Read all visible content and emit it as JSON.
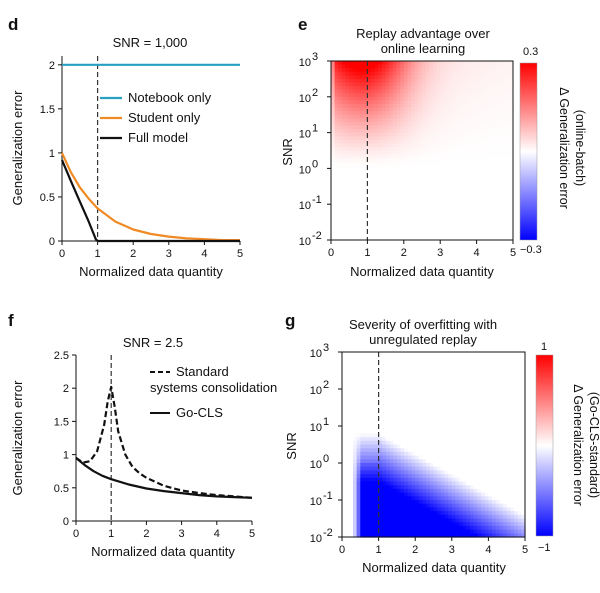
{
  "chart_data": [
    {
      "panel": "d",
      "type": "line",
      "title": "SNR = 1,000",
      "xlabel": "Normalized data quantity",
      "ylabel": "Generalization error",
      "xlim": [
        0,
        5
      ],
      "ylim": [
        0,
        2.1
      ],
      "xticks": [
        "0",
        "1",
        "2",
        "3",
        "4",
        "5"
      ],
      "yticks": [
        "0",
        "0.5",
        "1",
        "1.5",
        "2"
      ],
      "vline_x": 1,
      "legend_position": "center-right",
      "series": [
        {
          "name": "Notebook only",
          "color": "#2a9fc0",
          "x": [
            0,
            0.5,
            1,
            2,
            3,
            4,
            5
          ],
          "y": [
            2,
            2,
            2,
            2,
            2,
            2,
            2
          ]
        },
        {
          "name": "Student only",
          "color": "#f08a24",
          "x": [
            0,
            0.25,
            0.5,
            0.75,
            1,
            1.5,
            2,
            2.5,
            3,
            3.5,
            4,
            4.5,
            5
          ],
          "y": [
            1.0,
            0.78,
            0.61,
            0.48,
            0.37,
            0.22,
            0.13,
            0.08,
            0.05,
            0.03,
            0.02,
            0.01,
            0.01
          ]
        },
        {
          "name": "Full model",
          "color": "#111111",
          "x": [
            0,
            0.25,
            0.5,
            0.75,
            0.95,
            1,
            1.5,
            2,
            3,
            4,
            5
          ],
          "y": [
            0.92,
            0.68,
            0.45,
            0.22,
            0.02,
            0.0,
            0.0,
            0.0,
            0.0,
            0.0,
            0.0
          ]
        }
      ]
    },
    {
      "panel": "e",
      "type": "heatmap",
      "title": "Replay advantage over online learning",
      "xlabel": "Normalized data quantity",
      "ylabel": "SNR",
      "xlim": [
        0,
        5
      ],
      "ylim_log10": [
        -2,
        3
      ],
      "xticks": [
        "0",
        "1",
        "2",
        "3",
        "4",
        "5"
      ],
      "yticks": [
        "10",
        "10",
        "10",
        "10",
        "10",
        "10"
      ],
      "ytick_exponents": [
        "-2",
        "-1",
        "0",
        "1",
        "2",
        "3"
      ],
      "vline_x": 1,
      "colorbar": {
        "label": "Δ Generalization error (online-batch)",
        "min": -0.3,
        "max": 0.3,
        "ticks": [
          "−0.3",
          "0.3"
        ],
        "low_color": "#0000ff",
        "mid_color": "#ffffff",
        "high_color": "#ff0000"
      }
    },
    {
      "panel": "f",
      "type": "line",
      "title": "SNR = 2.5",
      "xlabel": "Normalized data quantity",
      "ylabel": "Generalization error",
      "xlim": [
        0,
        5
      ],
      "ylim": [
        0,
        2.5
      ],
      "xticks": [
        "0",
        "1",
        "2",
        "3",
        "4",
        "5"
      ],
      "yticks": [
        "0",
        "0.5",
        "1",
        "1.5",
        "2",
        "2.5"
      ],
      "vline_x": 1,
      "legend_position": "top-right",
      "series": [
        {
          "name": "Standard systems consolidation",
          "color": "#111111",
          "dashed": true,
          "x": [
            0,
            0.2,
            0.4,
            0.6,
            0.8,
            0.9,
            1.0,
            1.1,
            1.2,
            1.4,
            1.6,
            1.8,
            2.0,
            2.5,
            3,
            3.5,
            4,
            4.5,
            5
          ],
          "y": [
            0.95,
            0.88,
            0.9,
            1.05,
            1.45,
            1.8,
            2.02,
            1.72,
            1.35,
            1.0,
            0.82,
            0.72,
            0.65,
            0.53,
            0.46,
            0.42,
            0.39,
            0.37,
            0.35
          ]
        },
        {
          "name": "Go-CLS",
          "color": "#111111",
          "dashed": false,
          "x": [
            0,
            0.25,
            0.5,
            0.75,
            1,
            1.5,
            2,
            2.5,
            3,
            3.5,
            4,
            4.5,
            5
          ],
          "y": [
            0.95,
            0.84,
            0.75,
            0.68,
            0.63,
            0.55,
            0.49,
            0.45,
            0.42,
            0.39,
            0.37,
            0.36,
            0.35
          ]
        }
      ]
    },
    {
      "panel": "g",
      "type": "heatmap",
      "title": "Severity of overfitting with unregulated replay",
      "xlabel": "Normalized data quantity",
      "ylabel": "SNR",
      "xlim": [
        0,
        5
      ],
      "ylim_log10": [
        -2,
        3
      ],
      "xticks": [
        "0",
        "1",
        "2",
        "3",
        "4",
        "5"
      ],
      "yticks": [
        "10",
        "10",
        "10",
        "10",
        "10",
        "10"
      ],
      "ytick_exponents": [
        "-2",
        "-1",
        "0",
        "1",
        "2",
        "3"
      ],
      "vline_x": 1,
      "colorbar": {
        "label": "Δ Generalization error (Go-CLS-standard)",
        "min": -1,
        "max": 1,
        "ticks": [
          "−1",
          "1"
        ],
        "low_color": "#0000ff",
        "mid_color": "#ffffff",
        "high_color": "#ff0000"
      }
    }
  ],
  "labels": {
    "panel_d": "d",
    "panel_e": "e",
    "panel_f": "f",
    "panel_g": "g",
    "e_title_line1": "Replay advantage over",
    "e_title_line2": "online learning",
    "g_title_line1": "Severity of overfitting with",
    "g_title_line2": "unregulated replay",
    "e_cbar_line1": "Δ Generalization error",
    "e_cbar_line2": "(online-batch)",
    "g_cbar_line1": "Δ Generalization error",
    "g_cbar_line2": "(Go-CLS-standard)",
    "f_legend_line1": "Standard",
    "f_legend_line2": "systems consolidation"
  }
}
